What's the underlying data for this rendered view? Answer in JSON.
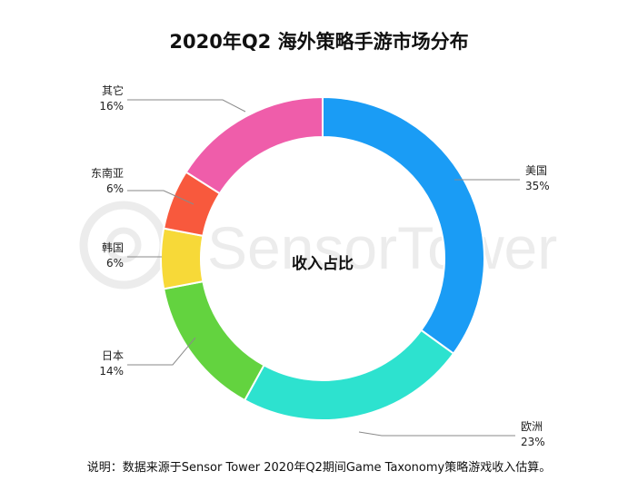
{
  "chart_data": {
    "type": "pie",
    "title": "2020年Q2 海外策略手游市场分布",
    "center_label": "收入占比",
    "slices": [
      {
        "label": "美国",
        "value": 35,
        "value_label": "35%",
        "color": "#1a9cf5"
      },
      {
        "label": "欧洲",
        "value": 23,
        "value_label": "23%",
        "color": "#2de2cf"
      },
      {
        "label": "日本",
        "value": 14,
        "value_label": "14%",
        "color": "#63d33f"
      },
      {
        "label": "韩国",
        "value": 6,
        "value_label": "6%",
        "color": "#f7d938"
      },
      {
        "label": "东南亚",
        "value": 6,
        "value_label": "6%",
        "color": "#f8593d"
      },
      {
        "label": "其它",
        "value": 16,
        "value_label": "16%",
        "color": "#ef5daa"
      }
    ],
    "legend": "none"
  },
  "watermark": "SensorTower",
  "footnote": "说明：数据来源于Sensor Tower 2020年Q2期间Game Taxonomy策略游戏收入估算。"
}
